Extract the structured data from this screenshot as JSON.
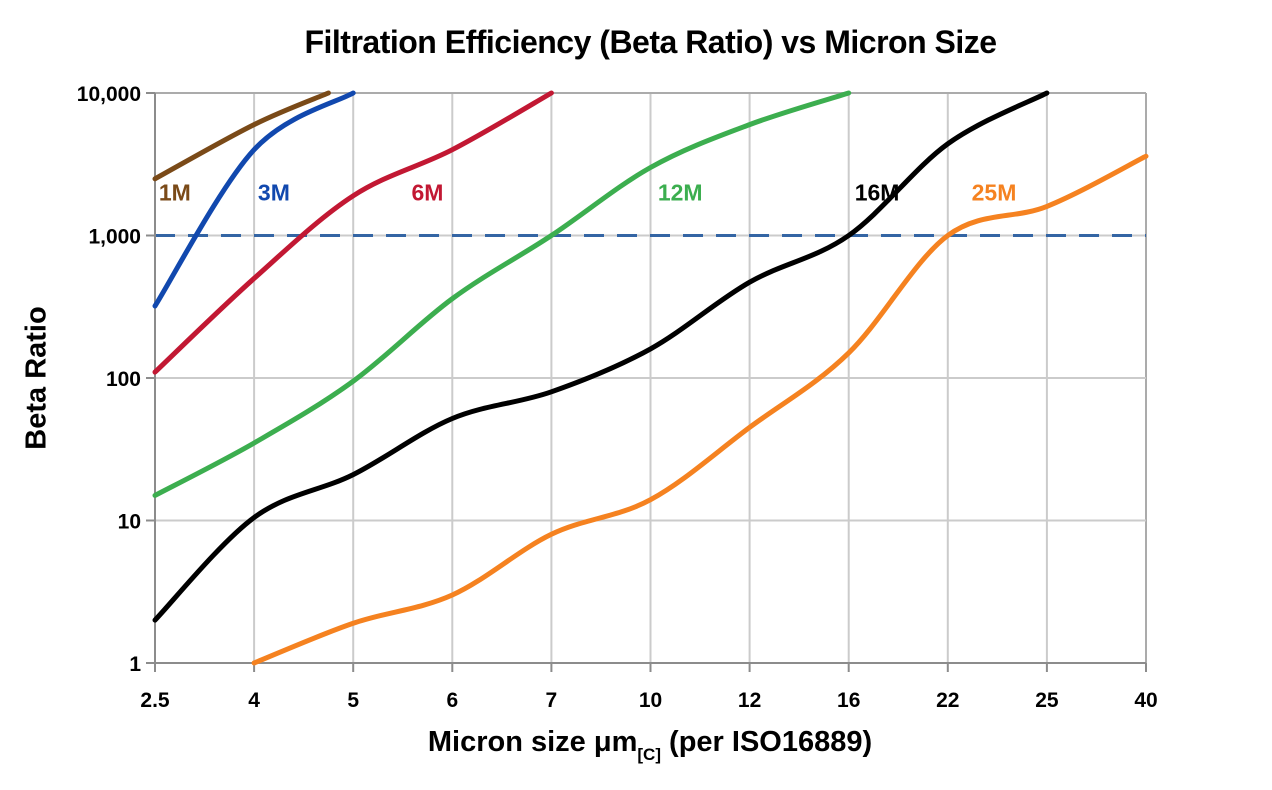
{
  "chart_data": {
    "type": "line",
    "title": "Filtration Efficiency (Beta Ratio) vs Micron Size",
    "ylabel": "Beta Ratio",
    "xlabel": "Micron size μm[C] (per ISO16889)",
    "xlabel_parts": {
      "pre": "Micron size μm",
      "sub": "[C]",
      "post": " (per ISO16889)"
    },
    "x_scale": "categorical-equal-spacing",
    "y_scale": "log",
    "ylim": [
      1,
      10000
    ],
    "grid": true,
    "legend_position": "inline-curve-labels",
    "categories": [
      2.5,
      4,
      5,
      6,
      7,
      10,
      12,
      16,
      22,
      25,
      40
    ],
    "x_tick_labels": [
      "2.5",
      "4",
      "5",
      "6",
      "7",
      "10",
      "12",
      "16",
      "22",
      "25",
      "40"
    ],
    "y_ticks": [
      {
        "value": 1,
        "label": "1"
      },
      {
        "value": 10,
        "label": "10"
      },
      {
        "value": 100,
        "label": "100"
      },
      {
        "value": 1000,
        "label": "1,000"
      },
      {
        "value": 10000,
        "label": "10,000"
      }
    ],
    "reference_line": {
      "value": 1000,
      "style": "dashed",
      "color": "#3465A4",
      "width": 3
    },
    "series": [
      {
        "name": "1M",
        "color": "#7A4A18",
        "label_pos": [
          2.8,
          2000
        ],
        "points": [
          [
            2.5,
            2500
          ],
          [
            4,
            6000
          ],
          [
            4.75,
            10000
          ]
        ]
      },
      {
        "name": "3M",
        "color": "#1148AE",
        "label_pos": [
          4.2,
          2000
        ],
        "points": [
          [
            2.5,
            320
          ],
          [
            4,
            4000
          ],
          [
            5,
            10000
          ]
        ]
      },
      {
        "name": "6M",
        "color": "#C21833",
        "label_pos": [
          5.75,
          2000
        ],
        "points": [
          [
            2.5,
            110
          ],
          [
            4,
            500
          ],
          [
            5,
            1900
          ],
          [
            6,
            4000
          ],
          [
            7,
            10000
          ]
        ]
      },
      {
        "name": "12M",
        "color": "#3CAE4F",
        "label_pos": [
          10.6,
          2000
        ],
        "points": [
          [
            2.5,
            15
          ],
          [
            4,
            35
          ],
          [
            5,
            95
          ],
          [
            6,
            360
          ],
          [
            7,
            1000
          ],
          [
            10,
            3000
          ],
          [
            12,
            6000
          ],
          [
            16,
            10000
          ]
        ]
      },
      {
        "name": "16M",
        "color": "#000000",
        "label_pos": [
          17.72,
          2000
        ],
        "points": [
          [
            2.5,
            2
          ],
          [
            4,
            10.5
          ],
          [
            5,
            21
          ],
          [
            6,
            52
          ],
          [
            7,
            80
          ],
          [
            10,
            160
          ],
          [
            12,
            470
          ],
          [
            16,
            1000
          ],
          [
            22,
            4400
          ],
          [
            25,
            10000
          ]
        ]
      },
      {
        "name": "25M",
        "color": "#F58220",
        "label_pos": [
          23.4,
          2000
        ],
        "points": [
          [
            4,
            1
          ],
          [
            5,
            1.9
          ],
          [
            6,
            3
          ],
          [
            7,
            8
          ],
          [
            10,
            14
          ],
          [
            12,
            45
          ],
          [
            16,
            150
          ],
          [
            22,
            1000
          ],
          [
            25,
            1600
          ],
          [
            40,
            3600
          ]
        ]
      }
    ]
  },
  "colors": {
    "background": "#FFFFFF",
    "gridline": "#CBCBCB",
    "frame": "#ABABAB",
    "axis": "#8C8C8C",
    "tick": "#8C8C8C",
    "text": "#000000"
  }
}
